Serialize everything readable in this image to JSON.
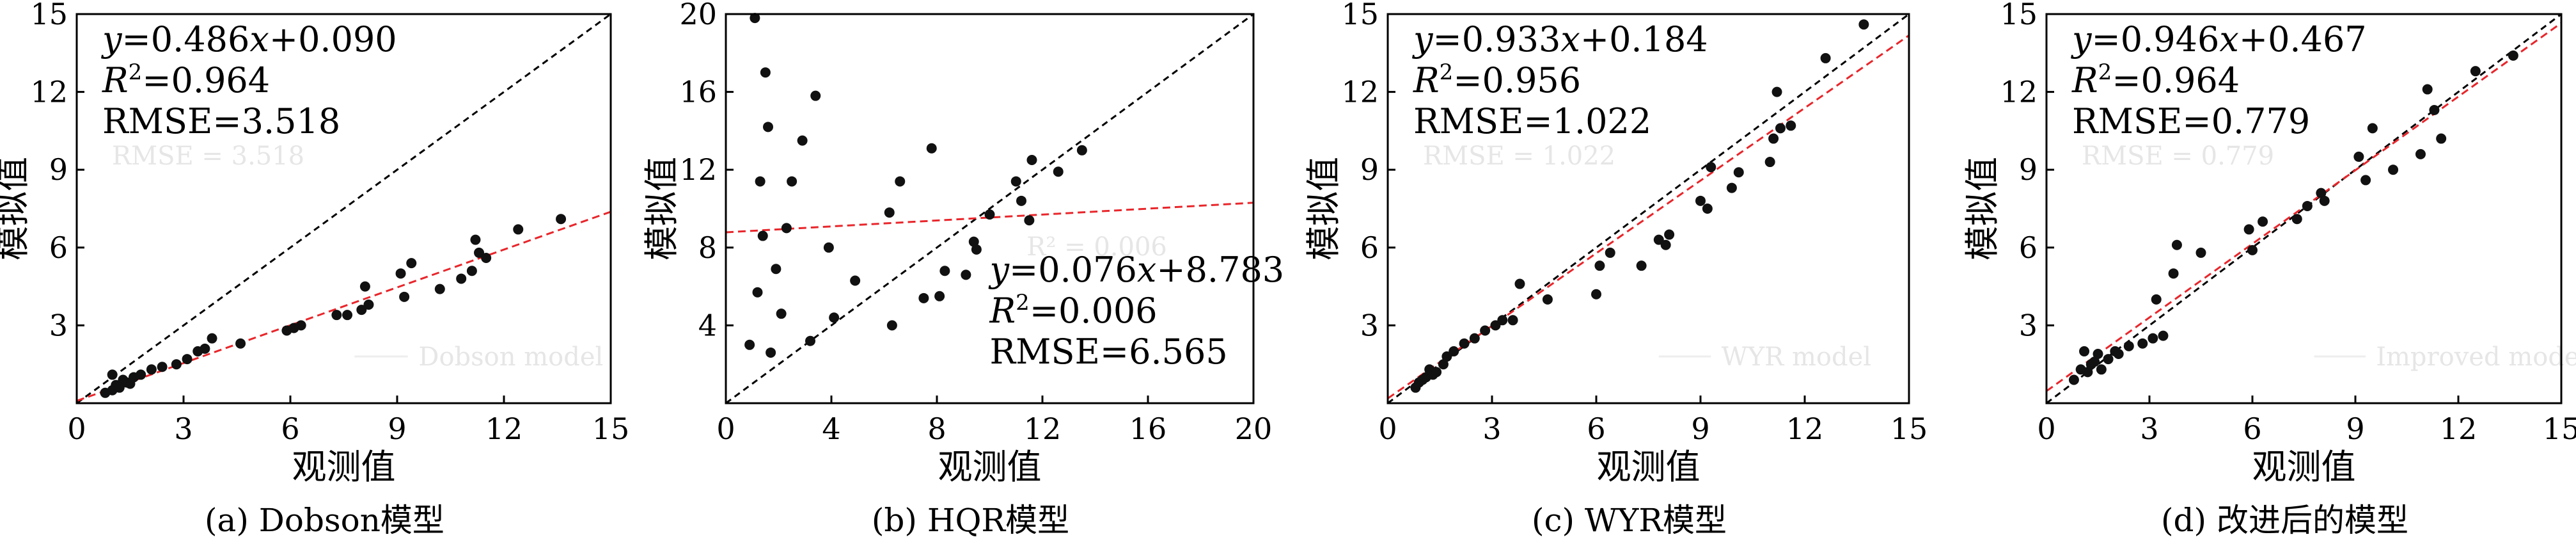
{
  "figure": {
    "charts": [
      {
        "id": "a",
        "caption": "(a) Dobson模型",
        "ghost_rmse": "RMSE = 3.518",
        "ghost_legend": "Dobson model",
        "ghost_r2": ""
      },
      {
        "id": "b",
        "caption": "(b) HQR模型",
        "ghost_rmse": "",
        "ghost_legend": "",
        "ghost_r2": "R² = 0.006"
      },
      {
        "id": "c",
        "caption": "(c) WYR模型",
        "ghost_rmse": "RMSE = 1.022",
        "ghost_legend": "WYR model",
        "ghost_r2": ""
      },
      {
        "id": "d",
        "caption": "(d) 改进后的模型",
        "ghost_rmse": "RMSE = 0.779",
        "ghost_legend": "Improved model",
        "ghost_r2": ""
      }
    ]
  },
  "chart_data": [
    {
      "type": "scatter",
      "xlabel": "观测值",
      "ylabel": "模拟值",
      "xlim": [
        0,
        15
      ],
      "ylim": [
        0,
        15
      ],
      "xticks": [
        0,
        3,
        6,
        9,
        12,
        15
      ],
      "yticks": [
        3,
        6,
        9,
        12,
        15
      ],
      "annotation_position": "top-left",
      "annotation": {
        "equation_y": "y",
        "equation_rest": "=0.486",
        "equation_x": "x",
        "equation_tail": "+0.090",
        "r2_r": "R",
        "r2_sup": "2",
        "r2_rest": "=0.964",
        "rmse": "RMSE=3.518"
      },
      "fit": {
        "slope": 0.486,
        "intercept": 0.09
      },
      "one_to_one": true,
      "points": [
        [
          0.8,
          0.4
        ],
        [
          1.0,
          0.5
        ],
        [
          1.1,
          0.7
        ],
        [
          1.2,
          0.6
        ],
        [
          1.3,
          0.9
        ],
        [
          1.4,
          0.8
        ],
        [
          1.5,
          0.75
        ],
        [
          1.0,
          1.1
        ],
        [
          1.6,
          1.0
        ],
        [
          1.8,
          1.1
        ],
        [
          2.1,
          1.3
        ],
        [
          2.4,
          1.4
        ],
        [
          2.8,
          1.5
        ],
        [
          3.1,
          1.7
        ],
        [
          3.4,
          2.0
        ],
        [
          3.6,
          2.1
        ],
        [
          3.8,
          2.5
        ],
        [
          4.6,
          2.3
        ],
        [
          5.9,
          2.8
        ],
        [
          6.1,
          2.9
        ],
        [
          6.3,
          3.0
        ],
        [
          7.3,
          3.4
        ],
        [
          7.6,
          3.4
        ],
        [
          8.0,
          3.6
        ],
        [
          8.2,
          3.8
        ],
        [
          8.1,
          4.5
        ],
        [
          9.2,
          4.1
        ],
        [
          9.1,
          5.0
        ],
        [
          9.4,
          5.4
        ],
        [
          10.2,
          4.4
        ],
        [
          10.8,
          4.8
        ],
        [
          11.1,
          5.1
        ],
        [
          11.2,
          6.3
        ],
        [
          11.3,
          5.8
        ],
        [
          11.5,
          5.6
        ],
        [
          12.4,
          6.7
        ],
        [
          13.6,
          7.1
        ]
      ]
    },
    {
      "type": "scatter",
      "xlabel": "观测值",
      "ylabel": "模拟值",
      "xlim": [
        0,
        20
      ],
      "ylim": [
        0,
        20
      ],
      "xticks": [
        0,
        4,
        8,
        12,
        16,
        20
      ],
      "yticks": [
        4,
        8,
        12,
        16,
        20
      ],
      "annotation_position": "bottom-right",
      "annotation": {
        "equation_y": "y",
        "equation_rest": "=0.076",
        "equation_x": "x",
        "equation_tail": "+8.783",
        "r2_r": "R",
        "r2_sup": "2",
        "r2_rest": "=0.006",
        "rmse": "RMSE=6.565"
      },
      "fit": {
        "slope": 0.076,
        "intercept": 8.783
      },
      "one_to_one": true,
      "points": [
        [
          0.9,
          3.0
        ],
        [
          1.1,
          19.8
        ],
        [
          1.2,
          5.7
        ],
        [
          1.3,
          11.4
        ],
        [
          1.4,
          8.6
        ],
        [
          1.5,
          17.0
        ],
        [
          1.6,
          14.2
        ],
        [
          1.7,
          2.6
        ],
        [
          1.9,
          6.9
        ],
        [
          2.1,
          4.6
        ],
        [
          2.3,
          9.0
        ],
        [
          2.5,
          11.4
        ],
        [
          2.9,
          13.5
        ],
        [
          3.2,
          3.2
        ],
        [
          3.4,
          15.8
        ],
        [
          3.9,
          8.0
        ],
        [
          4.1,
          4.4
        ],
        [
          4.9,
          6.3
        ],
        [
          6.3,
          4.0
        ],
        [
          6.2,
          9.8
        ],
        [
          6.6,
          11.4
        ],
        [
          7.5,
          5.4
        ],
        [
          7.8,
          13.1
        ],
        [
          8.1,
          5.5
        ],
        [
          8.3,
          6.8
        ],
        [
          9.1,
          6.6
        ],
        [
          9.4,
          8.3
        ],
        [
          9.5,
          7.9
        ],
        [
          10.0,
          9.7
        ],
        [
          11.0,
          11.4
        ],
        [
          11.2,
          10.4
        ],
        [
          11.5,
          9.4
        ],
        [
          11.6,
          12.5
        ],
        [
          12.6,
          11.9
        ],
        [
          13.5,
          13.0
        ]
      ]
    },
    {
      "type": "scatter",
      "xlabel": "观测值",
      "ylabel": "模拟值",
      "xlim": [
        0,
        15
      ],
      "ylim": [
        0,
        15
      ],
      "xticks": [
        0,
        3,
        6,
        9,
        12,
        15
      ],
      "yticks": [
        3,
        6,
        9,
        12,
        15
      ],
      "annotation_position": "top-left",
      "annotation": {
        "equation_y": "y",
        "equation_rest": "=0.933",
        "equation_x": "x",
        "equation_tail": "+0.184",
        "r2_r": "R",
        "r2_sup": "2",
        "r2_rest": "=0.956",
        "rmse": "RMSE=1.022"
      },
      "fit": {
        "slope": 0.933,
        "intercept": 0.184
      },
      "one_to_one": true,
      "points": [
        [
          0.8,
          0.6
        ],
        [
          0.9,
          0.8
        ],
        [
          1.0,
          0.9
        ],
        [
          1.1,
          1.0
        ],
        [
          1.2,
          1.3
        ],
        [
          1.3,
          1.1
        ],
        [
          1.4,
          1.2
        ],
        [
          1.6,
          1.5
        ],
        [
          1.7,
          1.8
        ],
        [
          1.9,
          2.0
        ],
        [
          2.2,
          2.3
        ],
        [
          2.5,
          2.5
        ],
        [
          2.8,
          2.8
        ],
        [
          3.1,
          3.0
        ],
        [
          3.3,
          3.2
        ],
        [
          3.6,
          3.2
        ],
        [
          3.8,
          4.6
        ],
        [
          4.6,
          4.0
        ],
        [
          6.0,
          4.2
        ],
        [
          6.1,
          5.3
        ],
        [
          6.4,
          5.8
        ],
        [
          7.3,
          5.3
        ],
        [
          7.8,
          6.3
        ],
        [
          8.1,
          6.5
        ],
        [
          8.0,
          6.1
        ],
        [
          9.0,
          7.8
        ],
        [
          9.2,
          7.5
        ],
        [
          9.3,
          9.1
        ],
        [
          9.9,
          8.3
        ],
        [
          10.1,
          8.9
        ],
        [
          11.0,
          9.3
        ],
        [
          11.1,
          10.2
        ],
        [
          11.2,
          12.0
        ],
        [
          11.3,
          10.6
        ],
        [
          11.6,
          10.7
        ],
        [
          12.6,
          13.3
        ],
        [
          13.7,
          14.6
        ]
      ]
    },
    {
      "type": "scatter",
      "xlabel": "观测值",
      "ylabel": "模拟值",
      "xlim": [
        0,
        15
      ],
      "ylim": [
        0,
        15
      ],
      "xticks": [
        0,
        3,
        6,
        9,
        12,
        15
      ],
      "yticks": [
        3,
        6,
        9,
        12,
        15
      ],
      "annotation_position": "top-left",
      "annotation": {
        "equation_y": "y",
        "equation_rest": "=0.946",
        "equation_x": "x",
        "equation_tail": "+0.467",
        "r2_r": "R",
        "r2_sup": "2",
        "r2_rest": "=0.964",
        "rmse": "RMSE=0.779"
      },
      "fit": {
        "slope": 0.946,
        "intercept": 0.467
      },
      "one_to_one": true,
      "points": [
        [
          0.8,
          0.9
        ],
        [
          1.0,
          1.3
        ],
        [
          1.1,
          2.0
        ],
        [
          1.2,
          1.2
        ],
        [
          1.3,
          1.5
        ],
        [
          1.4,
          1.6
        ],
        [
          1.5,
          1.9
        ],
        [
          1.6,
          1.3
        ],
        [
          1.8,
          1.7
        ],
        [
          2.0,
          2.0
        ],
        [
          2.1,
          1.9
        ],
        [
          2.4,
          2.2
        ],
        [
          2.8,
          2.3
        ],
        [
          3.1,
          2.5
        ],
        [
          3.2,
          4.0
        ],
        [
          3.4,
          2.6
        ],
        [
          3.7,
          5.0
        ],
        [
          3.8,
          6.1
        ],
        [
          4.5,
          5.8
        ],
        [
          5.9,
          6.7
        ],
        [
          6.0,
          5.9
        ],
        [
          6.3,
          7.0
        ],
        [
          7.3,
          7.1
        ],
        [
          7.6,
          7.6
        ],
        [
          8.0,
          8.1
        ],
        [
          8.1,
          7.8
        ],
        [
          9.1,
          9.5
        ],
        [
          9.3,
          8.6
        ],
        [
          9.5,
          10.6
        ],
        [
          10.1,
          9.0
        ],
        [
          10.9,
          9.6
        ],
        [
          11.1,
          12.1
        ],
        [
          11.3,
          11.3
        ],
        [
          11.5,
          10.2
        ],
        [
          12.5,
          12.8
        ],
        [
          13.6,
          13.4
        ]
      ]
    }
  ]
}
